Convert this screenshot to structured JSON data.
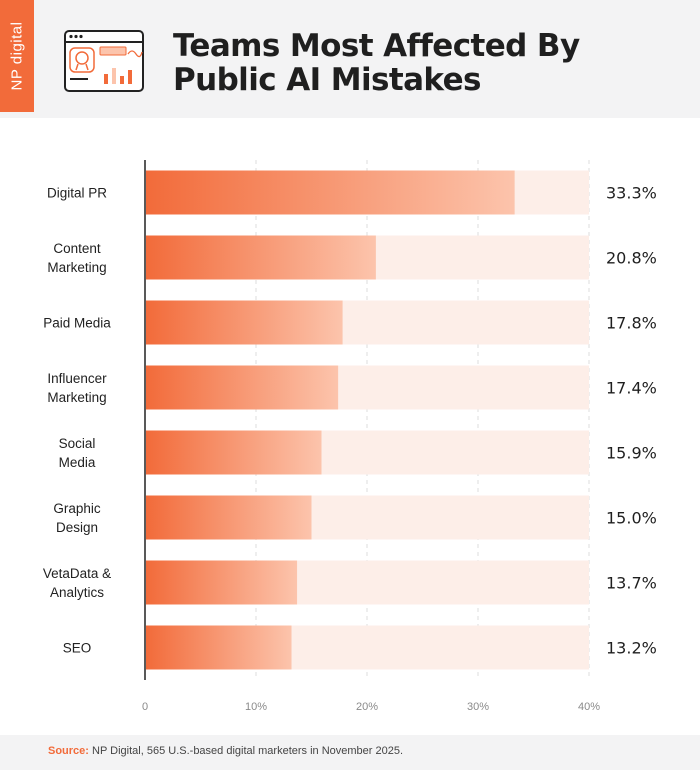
{
  "brand": {
    "logo_text": "NP digital",
    "accent": "#f26b3a"
  },
  "title": "Teams Most Affected By Public AI Mistakes",
  "source": {
    "label": "Source:",
    "text": "NP Digital, 565 U.S.-based digital marketers in November 2025."
  },
  "chart_data": {
    "type": "bar",
    "orientation": "horizontal",
    "categories": [
      [
        "Digital PR"
      ],
      [
        "Content",
        "Marketing"
      ],
      [
        "Paid Media"
      ],
      [
        "Influencer",
        "Marketing"
      ],
      [
        "Social",
        "Media"
      ],
      [
        "Graphic",
        "Design"
      ],
      [
        "VetaData &",
        "Analytics"
      ],
      [
        "SEO"
      ]
    ],
    "values": [
      33.3,
      20.8,
      17.8,
      17.4,
      15.9,
      15.0,
      13.7,
      13.2
    ],
    "value_labels": [
      "33.3%",
      "20.8%",
      "17.8%",
      "17.4%",
      "15.9%",
      "15.0%",
      "13.7%",
      "13.2%"
    ],
    "xlim": [
      0,
      40
    ],
    "xticks": [
      0,
      10,
      20,
      30,
      40
    ],
    "xtick_labels": [
      "0",
      "10%",
      "20%",
      "30%",
      "40%"
    ],
    "grid": "vertical dashed",
    "colors": {
      "bar_start": "#f26b3a",
      "bar_end": "#fcc4ac",
      "track": "#fdeee8"
    }
  }
}
